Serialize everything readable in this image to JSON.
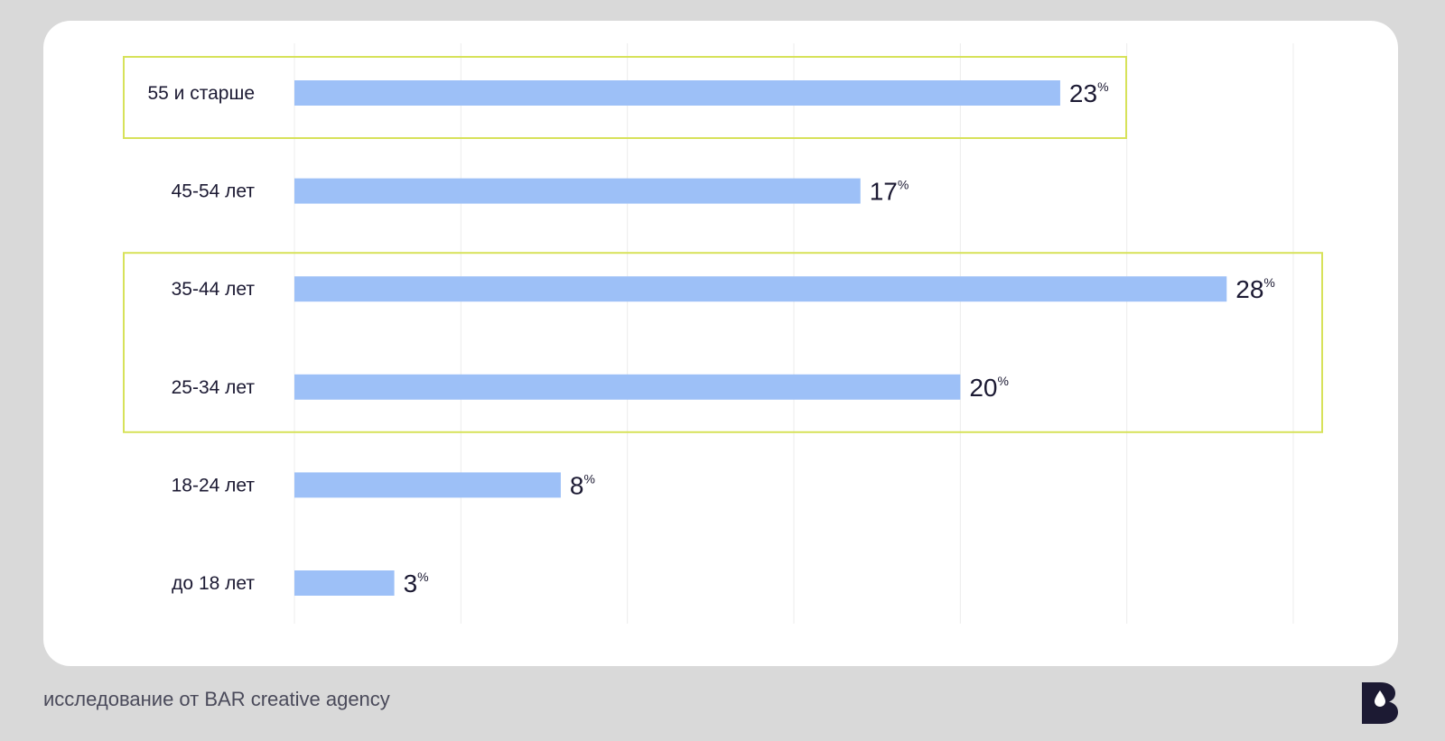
{
  "chart_data": {
    "type": "bar",
    "orientation": "horizontal",
    "categories": [
      "55 и старше",
      "45-54 лет",
      "35-44 лет",
      "25-34 лет",
      "18-24 лет",
      "до 18 лет"
    ],
    "values": [
      23,
      17,
      28,
      20,
      8,
      3
    ],
    "value_unit": "%",
    "xlim": [
      0,
      30
    ],
    "grid": true,
    "highlight_groups": [
      [
        "55 и старше"
      ],
      [
        "35-44 лет",
        "25-34 лет"
      ]
    ],
    "colors": {
      "bar": "#9dc0f7",
      "highlight": "#d7e25a",
      "grid": "#ececec",
      "text": "#1c1a33"
    }
  },
  "footer": {
    "source_text": "исследование от BAR creative agency"
  },
  "logo": {
    "letter": "B",
    "icon": "brand-b-logo-icon",
    "color": "#1c1a33"
  }
}
